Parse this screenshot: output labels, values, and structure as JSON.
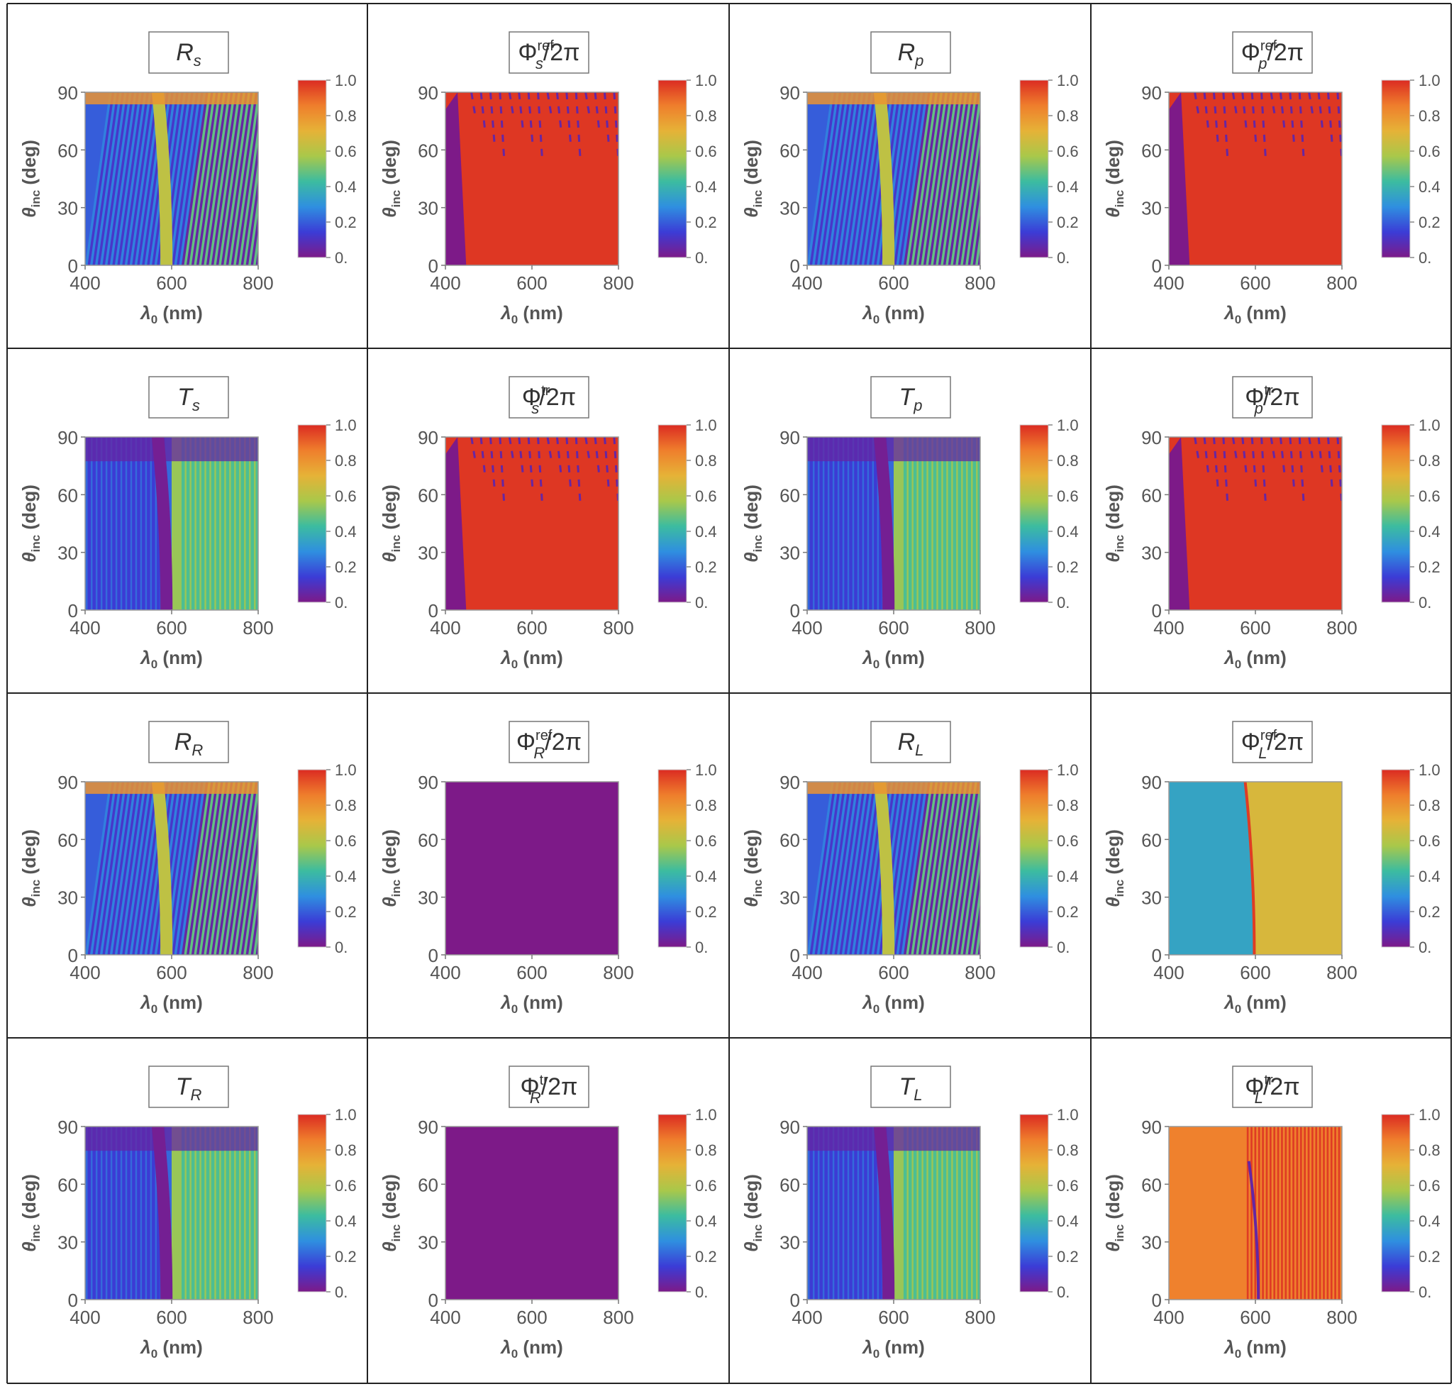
{
  "figure": {
    "axes": {
      "ylabel_main": "θ",
      "ylabel_sub": "inc",
      "ylabel_unit": "(deg)",
      "xlabel_main": "λ",
      "xlabel_sub": "0",
      "xlabel_unit": "(nm)"
    },
    "colorbar": {
      "ticks": [
        "1.0",
        "0.8",
        "0.6",
        "0.4",
        "0.2",
        "0."
      ],
      "colors": [
        "#7d1a88",
        "#3b3cd6",
        "#2f8fe0",
        "#3cbca0",
        "#a9c84a",
        "#e6b237",
        "#ef7e2c",
        "#db2b22"
      ]
    }
  },
  "chart_data": [
    {
      "type": "heatmap",
      "title": {
        "main": "R",
        "sub": "s",
        "sup": "",
        "suffix": ""
      },
      "pattern": "refl",
      "xticks": [
        "400",
        "600",
        "800"
      ],
      "yticks": [
        "0",
        "30",
        "60",
        "90"
      ],
      "xlim": [
        400,
        800
      ],
      "ylim": [
        0,
        90
      ],
      "zlim": [
        0,
        1
      ]
    },
    {
      "type": "heatmap",
      "title": {
        "main": "Φ",
        "sub": "s",
        "sup": "ref",
        "suffix": "/2π"
      },
      "pattern": "phase-red",
      "xticks": [
        "400",
        "600",
        "800"
      ],
      "yticks": [
        "0",
        "30",
        "60",
        "90"
      ],
      "xlim": [
        400,
        800
      ],
      "ylim": [
        0,
        90
      ],
      "zlim": [
        0,
        1
      ]
    },
    {
      "type": "heatmap",
      "title": {
        "main": "R",
        "sub": "p",
        "sup": "",
        "suffix": ""
      },
      "pattern": "refl",
      "xticks": [
        "400",
        "600",
        "800"
      ],
      "yticks": [
        "0",
        "30",
        "60",
        "90"
      ],
      "xlim": [
        400,
        800
      ],
      "ylim": [
        0,
        90
      ],
      "zlim": [
        0,
        1
      ]
    },
    {
      "type": "heatmap",
      "title": {
        "main": "Φ",
        "sub": "p",
        "sup": "ref",
        "suffix": "/2π"
      },
      "pattern": "phase-red",
      "xticks": [
        "400",
        "600",
        "800"
      ],
      "yticks": [
        "0",
        "30",
        "60",
        "90"
      ],
      "xlim": [
        400,
        800
      ],
      "ylim": [
        0,
        90
      ],
      "zlim": [
        0,
        1
      ]
    },
    {
      "type": "heatmap",
      "title": {
        "main": "T",
        "sub": "s",
        "sup": "",
        "suffix": ""
      },
      "pattern": "trans",
      "xticks": [
        "400",
        "600",
        "800"
      ],
      "yticks": [
        "0",
        "30",
        "60",
        "90"
      ],
      "xlim": [
        400,
        800
      ],
      "ylim": [
        0,
        90
      ],
      "zlim": [
        0,
        1
      ]
    },
    {
      "type": "heatmap",
      "title": {
        "main": "Φ",
        "sub": "s",
        "sup": "tr",
        "suffix": "/2π"
      },
      "pattern": "phase-red",
      "xticks": [
        "400",
        "600",
        "800"
      ],
      "yticks": [
        "0",
        "30",
        "60",
        "90"
      ],
      "xlim": [
        400,
        800
      ],
      "ylim": [
        0,
        90
      ],
      "zlim": [
        0,
        1
      ]
    },
    {
      "type": "heatmap",
      "title": {
        "main": "T",
        "sub": "p",
        "sup": "",
        "suffix": ""
      },
      "pattern": "trans",
      "xticks": [
        "400",
        "600",
        "800"
      ],
      "yticks": [
        "0",
        "30",
        "60",
        "90"
      ],
      "xlim": [
        400,
        800
      ],
      "ylim": [
        0,
        90
      ],
      "zlim": [
        0,
        1
      ]
    },
    {
      "type": "heatmap",
      "title": {
        "main": "Φ",
        "sub": "p",
        "sup": "tr",
        "suffix": "/2π"
      },
      "pattern": "phase-red",
      "xticks": [
        "400",
        "600",
        "800"
      ],
      "yticks": [
        "0",
        "30",
        "60",
        "90"
      ],
      "xlim": [
        400,
        800
      ],
      "ylim": [
        0,
        90
      ],
      "zlim": [
        0,
        1
      ]
    },
    {
      "type": "heatmap",
      "title": {
        "main": "R",
        "sub": "R",
        "sup": "",
        "suffix": ""
      },
      "pattern": "refl",
      "xticks": [
        "400",
        "600",
        "800"
      ],
      "yticks": [
        "0",
        "30",
        "60",
        "90"
      ],
      "xlim": [
        400,
        800
      ],
      "ylim": [
        0,
        90
      ],
      "zlim": [
        0,
        1
      ]
    },
    {
      "type": "heatmap",
      "title": {
        "main": "Φ",
        "sub": "R",
        "sup": "ref",
        "suffix": "/2π"
      },
      "pattern": "phase-zero",
      "xticks": [
        "400",
        "600",
        "800"
      ],
      "yticks": [
        "0",
        "30",
        "60",
        "90"
      ],
      "xlim": [
        400,
        800
      ],
      "ylim": [
        0,
        90
      ],
      "zlim": [
        0,
        1
      ]
    },
    {
      "type": "heatmap",
      "title": {
        "main": "R",
        "sub": "L",
        "sup": "",
        "suffix": ""
      },
      "pattern": "refl",
      "xticks": [
        "400",
        "600",
        "800"
      ],
      "yticks": [
        "0",
        "30",
        "60",
        "90"
      ],
      "xlim": [
        400,
        800
      ],
      "ylim": [
        0,
        90
      ],
      "zlim": [
        0,
        1
      ]
    },
    {
      "type": "heatmap",
      "title": {
        "main": "Φ",
        "sub": "L",
        "sup": "ref",
        "suffix": "/2π"
      },
      "pattern": "phase-split",
      "xticks": [
        "400",
        "600",
        "800"
      ],
      "yticks": [
        "0",
        "30",
        "60",
        "90"
      ],
      "xlim": [
        400,
        800
      ],
      "ylim": [
        0,
        90
      ],
      "zlim": [
        0,
        1
      ]
    },
    {
      "type": "heatmap",
      "title": {
        "main": "T",
        "sub": "R",
        "sup": "",
        "suffix": ""
      },
      "pattern": "trans",
      "xticks": [
        "400",
        "600",
        "800"
      ],
      "yticks": [
        "0",
        "30",
        "60",
        "90"
      ],
      "xlim": [
        400,
        800
      ],
      "ylim": [
        0,
        90
      ],
      "zlim": [
        0,
        1
      ]
    },
    {
      "type": "heatmap",
      "title": {
        "main": "Φ",
        "sub": "R",
        "sup": "tr",
        "suffix": "/2π"
      },
      "pattern": "phase-zero",
      "xticks": [
        "400",
        "600",
        "800"
      ],
      "yticks": [
        "0",
        "30",
        "60",
        "90"
      ],
      "xlim": [
        400,
        800
      ],
      "ylim": [
        0,
        90
      ],
      "zlim": [
        0,
        1
      ]
    },
    {
      "type": "heatmap",
      "title": {
        "main": "T",
        "sub": "L",
        "sup": "",
        "suffix": ""
      },
      "pattern": "trans",
      "xticks": [
        "400",
        "600",
        "800"
      ],
      "yticks": [
        "0",
        "30",
        "60",
        "90"
      ],
      "xlim": [
        400,
        800
      ],
      "ylim": [
        0,
        90
      ],
      "zlim": [
        0,
        1
      ]
    },
    {
      "type": "heatmap",
      "title": {
        "main": "Φ",
        "sub": "L",
        "sup": "tr",
        "suffix": "/2π"
      },
      "pattern": "phase-stripe",
      "xticks": [
        "400",
        "600",
        "800"
      ],
      "yticks": [
        "0",
        "30",
        "60",
        "90"
      ],
      "xlim": [
        400,
        800
      ],
      "ylim": [
        0,
        90
      ],
      "zlim": [
        0,
        1
      ]
    }
  ]
}
